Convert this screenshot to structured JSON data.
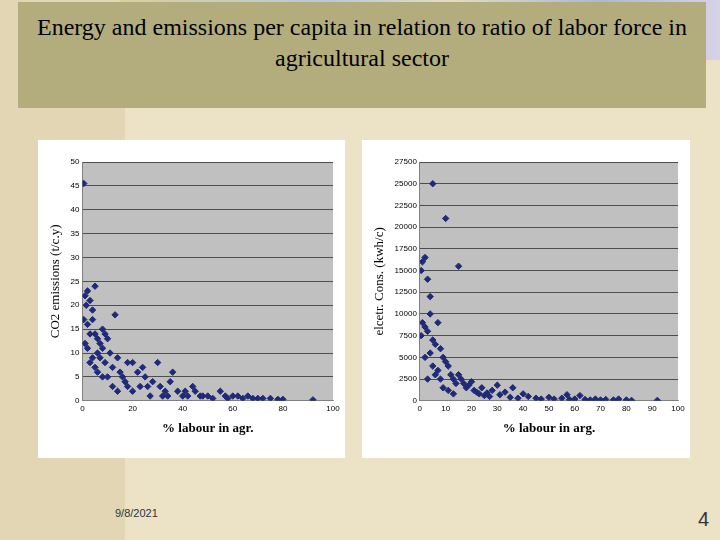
{
  "slide": {
    "title": "Energy and emissions per capita in relation to ratio of labor force in agricultural sector",
    "date": "9/8/2021",
    "page_number": "4"
  },
  "chart_data": [
    {
      "type": "scatter",
      "x_label": "% labour in agr.",
      "y_label": "CO2 emissions (t/c.y)",
      "color": "#1f2a78",
      "marker": "diamond",
      "grid": true,
      "xlim": [
        0,
        100
      ],
      "xticks": [
        0,
        20,
        40,
        60,
        80,
        100
      ],
      "ylim": [
        0,
        50
      ],
      "yticks": [
        0,
        5,
        10,
        15,
        20,
        25,
        30,
        35,
        40,
        45,
        50
      ],
      "x": [
        0.5,
        1,
        2,
        1.5,
        3,
        0.5,
        2,
        4,
        5,
        4,
        3,
        1,
        2,
        5,
        6,
        7,
        8,
        9,
        10,
        8,
        6,
        4,
        3,
        5,
        7,
        9,
        11,
        12,
        13,
        14,
        15,
        16,
        17,
        18,
        20,
        22,
        23,
        24,
        25,
        26,
        28,
        30,
        31,
        32,
        33,
        35,
        36,
        38,
        40,
        42,
        44,
        45,
        47,
        48,
        50,
        52,
        55,
        57,
        58,
        60,
        62,
        64,
        66,
        68,
        70,
        72,
        75,
        78,
        80,
        92,
        10,
        12,
        14,
        6,
        8,
        18,
        20,
        27,
        34,
        41
      ],
      "values": [
        45.5,
        22,
        23,
        20,
        21,
        17,
        16,
        17,
        24,
        19,
        14,
        12,
        11,
        14,
        13,
        12,
        15,
        14,
        13,
        11,
        10,
        9,
        8,
        7,
        9,
        8,
        10,
        7,
        18,
        9,
        6,
        5,
        4,
        8,
        8,
        6,
        3,
        7,
        5,
        3,
        4,
        8,
        3,
        1,
        2,
        4,
        6,
        2,
        1,
        1,
        3,
        2,
        1,
        1,
        1,
        0.5,
        2,
        1,
        0.5,
        1,
        1,
        0.5,
        1,
        0.5,
        0.5,
        0.5,
        0.5,
        0.3,
        0.3,
        0.2,
        5,
        3,
        2,
        6,
        5,
        3,
        2,
        1,
        1,
        2
      ]
    },
    {
      "type": "scatter",
      "x_label": "% labour in arg.",
      "y_label": "elcetr. Cons. (kwh/c)",
      "color": "#1f2a78",
      "marker": "diamond",
      "grid": true,
      "xlim": [
        0,
        100
      ],
      "xticks": [
        0,
        10,
        20,
        30,
        40,
        50,
        60,
        70,
        80,
        90,
        100
      ],
      "ylim": [
        0,
        27500
      ],
      "yticks": [
        0,
        2500,
        5000,
        7500,
        10000,
        12500,
        15000,
        17500,
        20000,
        22500,
        25000,
        27500
      ],
      "x": [
        5,
        10,
        15,
        1,
        2,
        0.5,
        3,
        4,
        1,
        2,
        3,
        0.5,
        5,
        6,
        4,
        2,
        8,
        9,
        10,
        11,
        7,
        6,
        3,
        12,
        13,
        14,
        15,
        16,
        17,
        18,
        19,
        20,
        21,
        22,
        23,
        25,
        27,
        28,
        30,
        31,
        33,
        35,
        36,
        38,
        40,
        42,
        45,
        47,
        50,
        52,
        55,
        57,
        58,
        60,
        62,
        64,
        66,
        68,
        70,
        72,
        75,
        77,
        80,
        82,
        92,
        8,
        9,
        11,
        13,
        5,
        7,
        4,
        24,
        26
      ],
      "values": [
        25000,
        21000,
        15500,
        16000,
        16500,
        15000,
        14000,
        12000,
        9000,
        8500,
        8000,
        7500,
        7000,
        6500,
        5500,
        5000,
        6000,
        5000,
        4500,
        4000,
        3500,
        3000,
        2500,
        3000,
        2500,
        2000,
        3000,
        2500,
        2000,
        1500,
        1800,
        2200,
        1200,
        1000,
        800,
        600,
        500,
        1200,
        1800,
        700,
        1000,
        400,
        1500,
        300,
        800,
        500,
        300,
        200,
        400,
        200,
        300,
        700,
        150,
        200,
        600,
        150,
        100,
        200,
        100,
        150,
        100,
        200,
        100,
        50,
        50,
        2500,
        1500,
        1200,
        800,
        4000,
        9000,
        10000,
        1500,
        900
      ]
    }
  ]
}
